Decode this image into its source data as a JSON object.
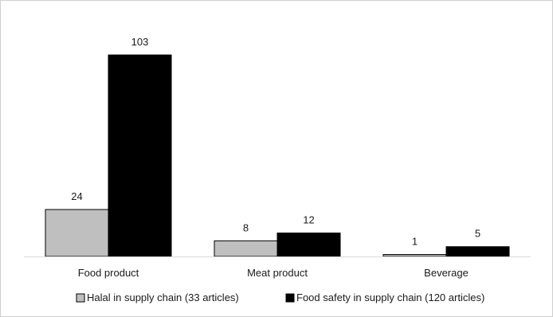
{
  "chart_data": {
    "type": "bar",
    "categories": [
      "Food product",
      "Meat product",
      "Beverage"
    ],
    "series": [
      {
        "name": "Halal in supply chain (33 articles)",
        "values": [
          24,
          8,
          1
        ],
        "color": "#bfbfbf"
      },
      {
        "name": "Food safety in supply chain (120 articles)",
        "values": [
          103,
          12,
          5
        ],
        "color": "#000000"
      }
    ],
    "data_labels": [
      [
        "24",
        "8",
        "1"
      ],
      [
        "103",
        "12",
        "5"
      ]
    ],
    "title": "",
    "xlabel": "",
    "ylabel": "",
    "ylim": [
      0,
      103
    ],
    "grid": false,
    "legend_position": "bottom"
  }
}
